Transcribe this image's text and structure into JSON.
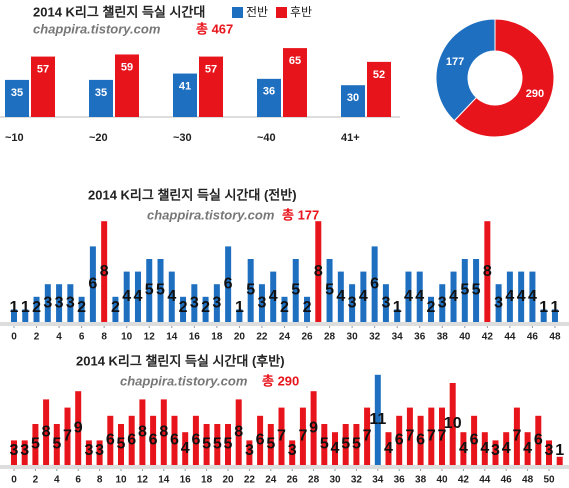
{
  "chart_data": [
    {
      "type": "grouped_bar",
      "title": "2014 K리그 챌린지 득실 시간대",
      "subtitle": "chappira.tistory.com",
      "total_label": "총 467",
      "categories": [
        "~10",
        "~20",
        "~30",
        "~40",
        "41+"
      ],
      "series": [
        {
          "name": "전반",
          "color": "#1f6fc0",
          "values": [
            35,
            35,
            41,
            36,
            30
          ]
        },
        {
          "name": "후반",
          "color": "#e8141c",
          "values": [
            57,
            59,
            57,
            65,
            52
          ]
        }
      ]
    },
    {
      "type": "pie",
      "values": [
        177,
        290
      ],
      "colors": [
        "#1f6fc0",
        "#e8141c"
      ]
    },
    {
      "type": "bar",
      "title": "2014 K리그 챌린지 득실 시간대 (전반)",
      "subtitle": "chappira.tistory.com",
      "total_label": "총 177",
      "color": "#1f6fc0",
      "max_color": "#e8141c",
      "x": [
        0,
        1,
        2,
        3,
        4,
        5,
        6,
        7,
        8,
        9,
        10,
        11,
        12,
        13,
        14,
        15,
        16,
        17,
        18,
        19,
        20,
        21,
        22,
        23,
        24,
        25,
        26,
        27,
        28,
        29,
        30,
        31,
        32,
        33,
        34,
        35,
        36,
        37,
        38,
        39,
        40,
        41,
        42,
        43,
        44,
        45,
        46,
        47,
        48
      ],
      "values": [
        1,
        1,
        2,
        3,
        3,
        3,
        2,
        6,
        8,
        2,
        4,
        4,
        5,
        5,
        4,
        2,
        3,
        2,
        3,
        6,
        1,
        5,
        3,
        4,
        2,
        5,
        2,
        8,
        5,
        4,
        3,
        4,
        6,
        3,
        1,
        4,
        4,
        2,
        3,
        4,
        5,
        5,
        8,
        3,
        4,
        4,
        4,
        1,
        1
      ],
      "xticks": [
        0,
        2,
        4,
        6,
        8,
        10,
        12,
        14,
        16,
        18,
        20,
        22,
        24,
        26,
        28,
        30,
        32,
        34,
        36,
        38,
        40,
        42,
        44,
        46,
        48
      ]
    },
    {
      "type": "bar",
      "title": "2014 K리그 챌린지 득실 시간대 (후반)",
      "subtitle": "chappira.tistory.com",
      "total_label": "총 290",
      "color": "#e8141c",
      "max_color": "#1f6fc0",
      "x": [
        0,
        1,
        2,
        3,
        4,
        5,
        6,
        7,
        8,
        9,
        10,
        11,
        12,
        13,
        14,
        15,
        16,
        17,
        18,
        19,
        20,
        21,
        22,
        23,
        24,
        25,
        26,
        27,
        28,
        29,
        30,
        31,
        32,
        33,
        34,
        35,
        36,
        37,
        38,
        39,
        40,
        41,
        42,
        43,
        44,
        45,
        46,
        47,
        48,
        49,
        50,
        51
      ],
      "values": [
        3,
        3,
        5,
        8,
        5,
        7,
        9,
        3,
        3,
        6,
        5,
        6,
        8,
        6,
        8,
        6,
        4,
        6,
        5,
        5,
        5,
        8,
        3,
        6,
        5,
        7,
        3,
        7,
        9,
        5,
        4,
        5,
        5,
        7,
        11,
        4,
        6,
        7,
        6,
        7,
        7,
        10,
        4,
        6,
        4,
        3,
        4,
        7,
        4,
        6,
        3,
        1
      ],
      "xticks": [
        0,
        2,
        4,
        6,
        8,
        10,
        12,
        14,
        16,
        18,
        20,
        22,
        24,
        26,
        28,
        30,
        32,
        34,
        36,
        38,
        40,
        42,
        44,
        46,
        48,
        50
      ]
    }
  ]
}
